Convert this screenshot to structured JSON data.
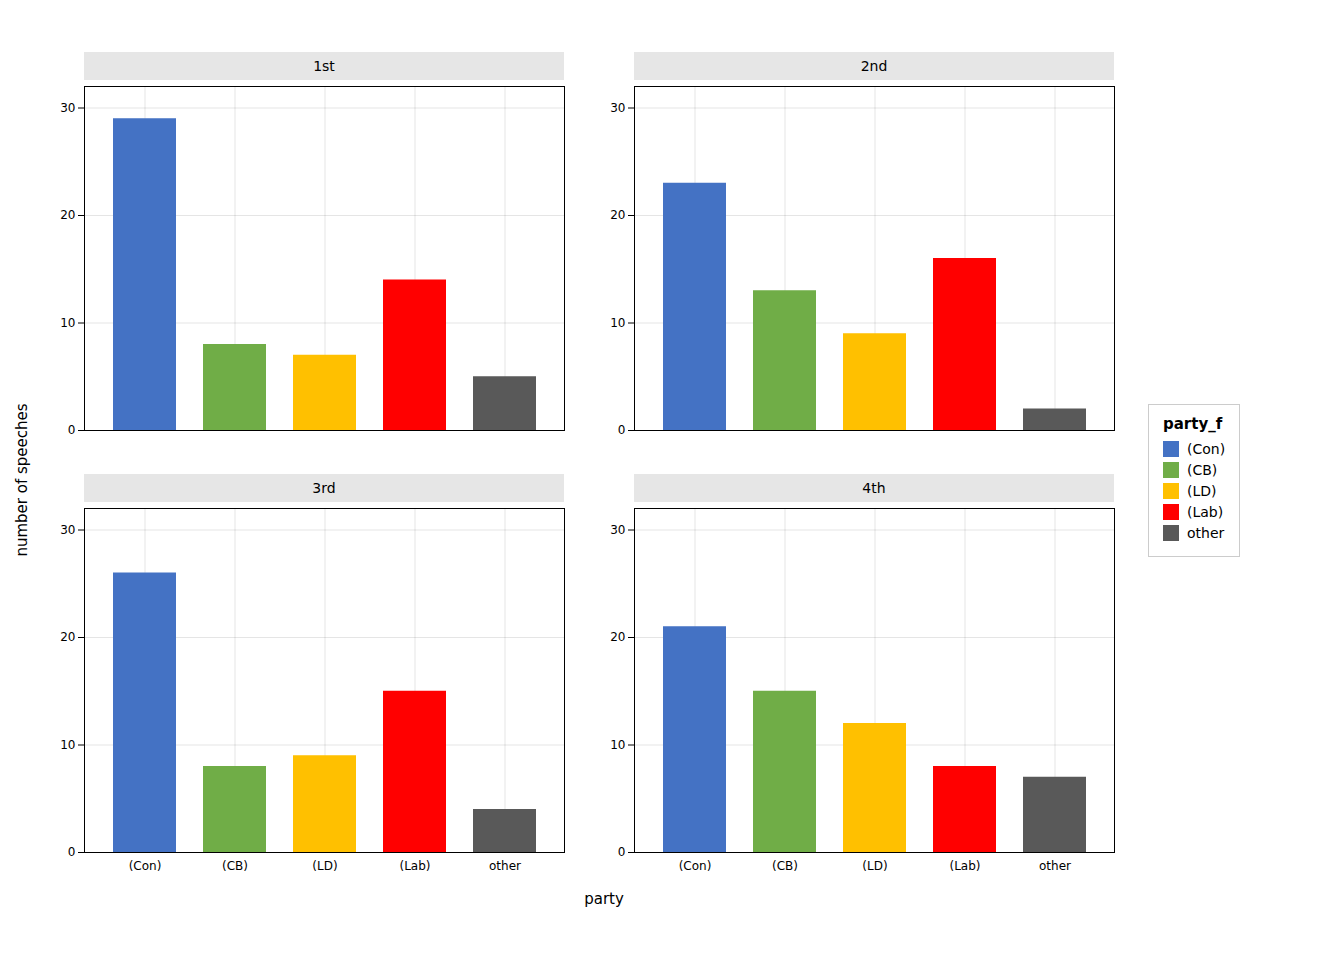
{
  "chart_data": {
    "type": "bar",
    "xlabel": "party",
    "ylabel": "number of speeches",
    "legend_title": "party_f",
    "legend": "right",
    "grid": true,
    "categories": [
      "(Con)",
      "(CB)",
      "(LD)",
      "(Lab)",
      "other"
    ],
    "colors": [
      "#4472C4",
      "#70AD47",
      "#FFC000",
      "#FF0000",
      "#595959"
    ],
    "ylim": [
      0,
      32
    ],
    "yticks": [
      0,
      10,
      20,
      30
    ],
    "panels": [
      {
        "title": "1st",
        "values": [
          29,
          8,
          7,
          14,
          5
        ]
      },
      {
        "title": "2nd",
        "values": [
          23,
          13,
          9,
          16,
          2
        ]
      },
      {
        "title": "3rd",
        "values": [
          26,
          8,
          9,
          15,
          4
        ]
      },
      {
        "title": "4th",
        "values": [
          21,
          15,
          12,
          8,
          7
        ]
      }
    ]
  }
}
